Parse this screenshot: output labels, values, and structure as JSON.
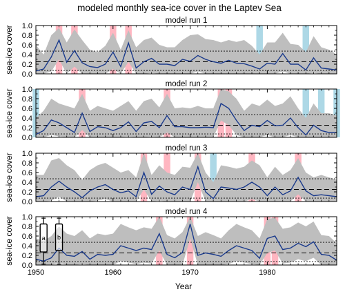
{
  "title": "modeled monthly sea-ice cover in the Laptev Sea",
  "ylabel": "sea-ice cover",
  "xlabel": "Year",
  "colors": {
    "band": "#bebebe",
    "line": "#1a3a8c",
    "high": "#ffb6c1",
    "low": "#add8e6"
  },
  "chart_data": [
    {
      "type": "line",
      "title": "model run 1",
      "xlim": [
        1950,
        1989
      ],
      "ylim": [
        0,
        1
      ],
      "xticks": [
        1950,
        1960,
        1970,
        1980
      ],
      "yticks": [
        "0.0",
        "0.2",
        "0.4",
        "0.6",
        "0.8",
        "1.0"
      ],
      "ref_lines": {
        "upper": 0.47,
        "mid": 0.25,
        "lower": 0.07
      },
      "x": [
        1950,
        1951,
        1952,
        1953,
        1954,
        1955,
        1956,
        1957,
        1958,
        1959,
        1960,
        1961,
        1962,
        1963,
        1964,
        1965,
        1966,
        1967,
        1968,
        1969,
        1970,
        1971,
        1972,
        1973,
        1974,
        1975,
        1976,
        1977,
        1978,
        1979,
        1980,
        1981,
        1982,
        1983,
        1984,
        1985,
        1986,
        1987,
        1988,
        1989
      ],
      "mean": [
        0.06,
        0.1,
        0.35,
        0.7,
        0.24,
        0.48,
        0.23,
        0.15,
        0.13,
        0.2,
        0.45,
        0.15,
        0.64,
        0.12,
        0.25,
        0.32,
        0.2,
        0.2,
        0.17,
        0.3,
        0.26,
        0.38,
        0.3,
        0.25,
        0.22,
        0.28,
        0.22,
        0.21,
        0.16,
        0.1,
        0.22,
        0.2,
        0.42,
        0.2,
        0.2,
        0.08,
        0.33,
        0.12,
        0.1,
        0.08
      ],
      "upper": [
        0.6,
        0.4,
        0.8,
        0.95,
        0.65,
        0.92,
        0.7,
        0.5,
        0.45,
        0.58,
        0.85,
        0.5,
        0.9,
        0.55,
        0.7,
        0.75,
        0.6,
        0.55,
        0.55,
        0.7,
        0.8,
        0.82,
        0.72,
        0.7,
        0.65,
        0.7,
        0.66,
        0.7,
        0.58,
        0.4,
        0.65,
        0.65,
        0.85,
        0.62,
        0.6,
        0.45,
        0.78,
        0.55,
        0.5,
        0.4
      ],
      "lower": [
        0.0,
        0.0,
        0.05,
        0.3,
        0.0,
        0.15,
        0.0,
        0.0,
        0.0,
        0.0,
        0.1,
        0.0,
        0.25,
        0.0,
        0.0,
        0.02,
        0.0,
        0.0,
        0.0,
        0.0,
        0.0,
        0.05,
        0.0,
        0.0,
        0.0,
        0.0,
        0.0,
        0.0,
        0.0,
        0.0,
        0.0,
        0.0,
        0.05,
        0.0,
        0.0,
        0.0,
        0.02,
        0.0,
        0.0,
        0.0
      ],
      "highlights_high": [
        1953,
        1955,
        1960,
        1962
      ],
      "highlights_low": [
        1979,
        1985
      ]
    },
    {
      "type": "line",
      "title": "model run 2",
      "xlim": [
        1950,
        1989
      ],
      "ylim": [
        0,
        1
      ],
      "xticks": [
        1950,
        1960,
        1970,
        1980
      ],
      "yticks": [
        "0.0",
        "0.2",
        "0.4",
        "0.6",
        "0.8",
        "1.0"
      ],
      "ref_lines": {
        "upper": 0.47,
        "mid": 0.25,
        "lower": 0.07
      },
      "x": [
        1950,
        1951,
        1952,
        1953,
        1954,
        1955,
        1956,
        1957,
        1958,
        1959,
        1960,
        1961,
        1962,
        1963,
        1964,
        1965,
        1966,
        1967,
        1968,
        1969,
        1970,
        1971,
        1972,
        1973,
        1974,
        1975,
        1976,
        1977,
        1978,
        1979,
        1980,
        1981,
        1982,
        1983,
        1984,
        1985,
        1986,
        1987,
        1988,
        1989
      ],
      "mean": [
        0.06,
        0.14,
        0.36,
        0.3,
        0.2,
        0.1,
        0.5,
        0.12,
        0.22,
        0.2,
        0.14,
        0.2,
        0.32,
        0.12,
        0.3,
        0.33,
        0.2,
        0.45,
        0.22,
        0.22,
        0.2,
        0.2,
        0.21,
        0.2,
        0.7,
        0.6,
        0.35,
        0.14,
        0.25,
        0.22,
        0.35,
        0.24,
        0.25,
        0.4,
        0.2,
        0.05,
        0.25,
        0.14,
        0.1,
        0.1
      ],
      "upper": [
        0.4,
        0.55,
        0.8,
        0.7,
        0.65,
        0.6,
        0.9,
        0.55,
        0.65,
        0.6,
        0.55,
        0.65,
        0.75,
        0.55,
        0.75,
        0.8,
        0.62,
        0.9,
        0.6,
        0.62,
        0.6,
        0.65,
        0.6,
        0.6,
        1.0,
        0.95,
        0.8,
        0.55,
        0.7,
        0.65,
        0.78,
        0.65,
        0.7,
        0.85,
        0.6,
        0.4,
        0.7,
        0.5,
        0.5,
        0.45
      ],
      "lower": [
        0.0,
        0.0,
        0.05,
        0.02,
        0.0,
        0.0,
        0.15,
        0.0,
        0.0,
        0.0,
        0.0,
        0.0,
        0.02,
        0.0,
        0.0,
        0.02,
        0.0,
        0.1,
        0.0,
        0.0,
        0.0,
        0.0,
        0.0,
        0.0,
        0.35,
        0.25,
        0.05,
        0.0,
        0.0,
        0.0,
        0.05,
        0.0,
        0.0,
        0.05,
        0.0,
        0.0,
        0.0,
        0.0,
        0.0,
        0.0
      ],
      "highlights_high": [
        1956,
        1967,
        1974,
        1975
      ],
      "highlights_low": [
        1950,
        1985,
        1987,
        1989
      ]
    },
    {
      "type": "line",
      "title": "model run 3",
      "xlim": [
        1950,
        1989
      ],
      "ylim": [
        0,
        1
      ],
      "xticks": [
        1950,
        1960,
        1970,
        1980
      ],
      "yticks": [
        "0.0",
        "0.2",
        "0.4",
        "0.6",
        "0.8",
        "1.0"
      ],
      "ref_lines": {
        "upper": 0.47,
        "mid": 0.25,
        "lower": 0.07
      },
      "x": [
        1950,
        1951,
        1952,
        1953,
        1954,
        1955,
        1956,
        1957,
        1958,
        1959,
        1960,
        1961,
        1962,
        1963,
        1964,
        1965,
        1966,
        1967,
        1968,
        1969,
        1970,
        1971,
        1972,
        1973,
        1974,
        1975,
        1976,
        1977,
        1978,
        1979,
        1980,
        1981,
        1982,
        1983,
        1984,
        1985,
        1986,
        1987,
        1988,
        1989
      ],
      "mean": [
        0.1,
        0.12,
        0.3,
        0.42,
        0.3,
        0.2,
        0.08,
        0.22,
        0.3,
        0.35,
        0.25,
        0.18,
        0.22,
        0.1,
        0.6,
        0.15,
        0.32,
        0.2,
        0.14,
        0.3,
        0.25,
        0.72,
        0.2,
        0.06,
        0.3,
        0.28,
        0.25,
        0.3,
        0.4,
        0.3,
        0.12,
        0.3,
        0.14,
        0.22,
        0.5,
        0.22,
        0.12,
        0.14,
        0.12,
        0.1
      ],
      "upper": [
        0.55,
        0.55,
        0.85,
        0.9,
        0.75,
        0.65,
        0.45,
        0.65,
        0.75,
        0.8,
        0.7,
        0.6,
        0.65,
        0.5,
        1.0,
        0.55,
        0.75,
        0.6,
        0.55,
        0.72,
        0.7,
        1.0,
        0.6,
        0.4,
        0.75,
        0.72,
        0.68,
        0.72,
        0.85,
        0.75,
        0.5,
        0.72,
        0.55,
        0.65,
        0.9,
        0.6,
        0.5,
        0.55,
        0.5,
        0.45
      ],
      "lower": [
        0.0,
        0.0,
        0.02,
        0.1,
        0.0,
        0.0,
        0.0,
        0.0,
        0.02,
        0.05,
        0.0,
        0.0,
        0.0,
        0.0,
        0.25,
        0.0,
        0.02,
        0.0,
        0.0,
        0.0,
        0.0,
        0.4,
        0.0,
        0.0,
        0.0,
        0.0,
        0.0,
        0.0,
        0.05,
        0.0,
        0.0,
        0.0,
        0.0,
        0.0,
        0.15,
        0.0,
        0.0,
        0.0,
        0.0,
        0.0
      ],
      "highlights_high": [
        1964,
        1967,
        1971,
        1978,
        1984
      ],
      "highlights_low": [
        1973
      ]
    },
    {
      "type": "line",
      "title": "model run 4",
      "xlim": [
        1950,
        1989
      ],
      "ylim": [
        0,
        1
      ],
      "xticks": [
        1950,
        1960,
        1970,
        1980
      ],
      "yticks": [
        "0.0",
        "0.2",
        "0.4",
        "0.6",
        "0.8",
        "1.0"
      ],
      "ref_lines": {
        "upper": 0.47,
        "mid": 0.25,
        "lower": 0.07
      },
      "x": [
        1950,
        1951,
        1952,
        1953,
        1954,
        1955,
        1956,
        1957,
        1958,
        1959,
        1960,
        1961,
        1962,
        1963,
        1964,
        1965,
        1966,
        1967,
        1968,
        1969,
        1970,
        1971,
        1972,
        1973,
        1974,
        1975,
        1976,
        1977,
        1978,
        1979,
        1980,
        1981,
        1982,
        1983,
        1984,
        1985,
        1986,
        1987,
        1988,
        1989
      ],
      "mean": [
        0.12,
        0.08,
        0.15,
        0.35,
        0.2,
        0.18,
        0.28,
        0.12,
        0.22,
        0.2,
        0.22,
        0.4,
        0.35,
        0.3,
        0.35,
        0.32,
        0.65,
        0.22,
        0.15,
        0.26,
        0.85,
        0.2,
        0.25,
        0.22,
        0.18,
        0.3,
        0.4,
        0.35,
        0.3,
        0.14,
        0.55,
        0.6,
        0.32,
        0.35,
        0.45,
        0.38,
        0.48,
        0.22,
        0.2,
        0.1
      ],
      "upper": [
        0.55,
        0.5,
        0.6,
        0.8,
        0.65,
        0.6,
        0.72,
        0.55,
        0.65,
        0.62,
        0.65,
        0.85,
        0.78,
        0.72,
        0.78,
        0.75,
        1.0,
        0.62,
        0.55,
        0.68,
        1.0,
        0.6,
        0.68,
        0.62,
        0.55,
        0.72,
        0.85,
        0.78,
        0.72,
        0.55,
        0.95,
        0.98,
        0.75,
        0.78,
        0.88,
        0.8,
        0.9,
        0.62,
        0.6,
        0.45
      ],
      "lower": [
        0.0,
        0.0,
        0.0,
        0.05,
        0.0,
        0.0,
        0.02,
        0.0,
        0.0,
        0.0,
        0.0,
        0.08,
        0.05,
        0.02,
        0.05,
        0.03,
        0.3,
        0.0,
        0.0,
        0.0,
        0.55,
        0.0,
        0.0,
        0.0,
        0.0,
        0.02,
        0.08,
        0.05,
        0.02,
        0.0,
        0.25,
        0.3,
        0.03,
        0.05,
        0.12,
        0.08,
        0.15,
        0.0,
        0.0,
        0.0
      ],
      "highlights_high": [
        1966,
        1970,
        1980,
        1981
      ],
      "highlights_low": [],
      "boxplots": [
        {
          "label": "a",
          "x": 1951,
          "whisker_low": 0.02,
          "q1": 0.27,
          "q3": 0.85,
          "whisker_high": 0.97
        },
        {
          "label": "b",
          "x": 1953,
          "whisker_low": 0.02,
          "q1": 0.3,
          "q3": 0.85,
          "whisker_high": 0.97
        }
      ]
    }
  ]
}
